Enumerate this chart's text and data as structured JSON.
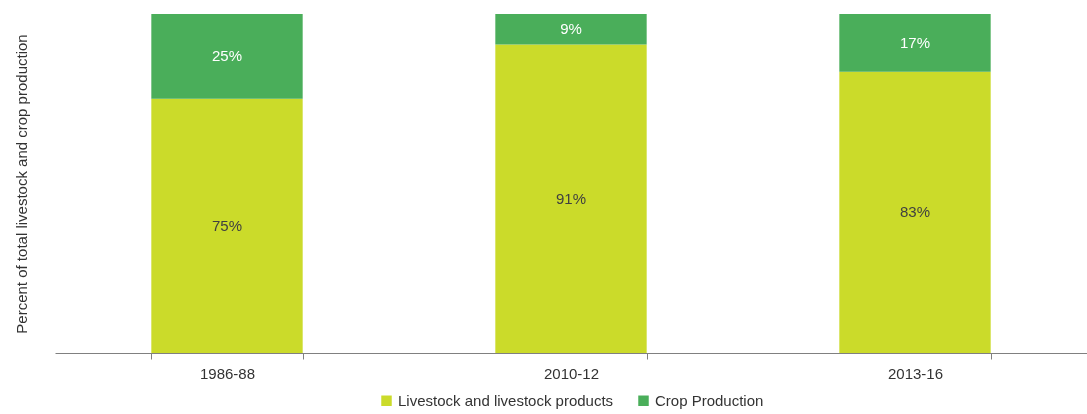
{
  "chart_data": {
    "type": "bar",
    "stacked": true,
    "ylabel": "Percent of total livestock and crop production",
    "categories": [
      "1986-88",
      "2010-12",
      "2013-16"
    ],
    "series": [
      {
        "name": "Livestock and livestock products",
        "color": "#cbdb2a",
        "values": [
          75,
          91,
          83
        ],
        "value_labels": [
          "75%",
          "91%",
          "83%"
        ]
      },
      {
        "name": "Crop Production",
        "color": "#4aae5a",
        "values": [
          25,
          9,
          17
        ],
        "value_labels": [
          "25%",
          "9%",
          "17%"
        ]
      }
    ],
    "ylim": [
      0,
      100
    ],
    "tick_labels": "x",
    "legend": "bottom"
  }
}
